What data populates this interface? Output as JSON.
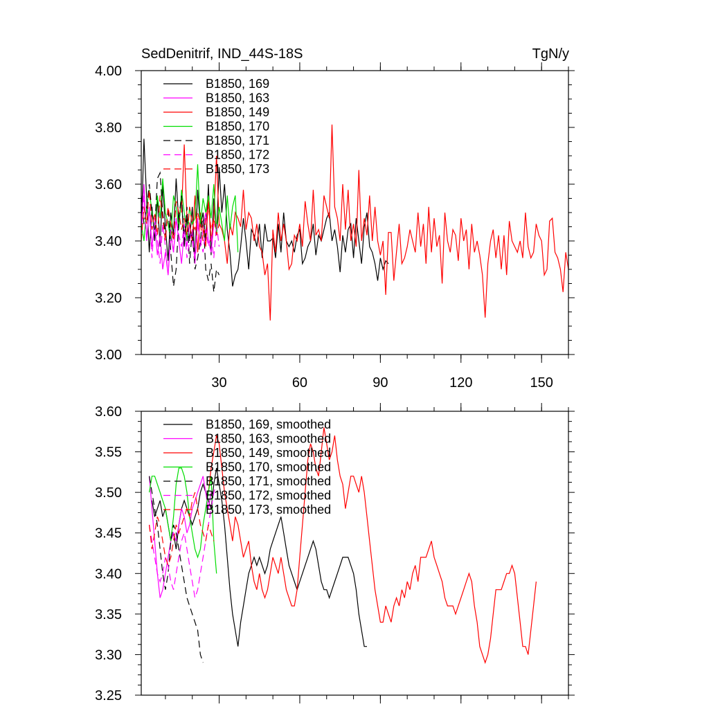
{
  "chart_data": [
    {
      "type": "line",
      "title": "SedDenitrif, IND_44S-18S",
      "units": "TgN/y",
      "xlim": [
        1,
        160
      ],
      "ylim": [
        3.0,
        4.0
      ],
      "yticks": [
        3.0,
        3.2,
        3.4,
        3.6,
        3.8,
        4.0
      ],
      "ytick_labels": [
        "3.00",
        "3.20",
        "3.40",
        "3.60",
        "3.80",
        "4.00"
      ],
      "xticks": [
        30,
        60,
        90,
        120,
        150
      ],
      "xtick_labels": [
        "30",
        "60",
        "90",
        "120",
        "150"
      ],
      "legend_position": "top-left",
      "series": [
        {
          "name": "B1850, 169",
          "color": "#000000",
          "dash": "solid",
          "x_start": 1,
          "values": [
            3.42,
            3.76,
            3.55,
            3.36,
            3.52,
            3.4,
            3.55,
            3.38,
            3.6,
            3.45,
            3.33,
            3.5,
            3.42,
            3.62,
            3.46,
            3.55,
            3.38,
            3.48,
            3.4,
            3.52,
            3.33,
            3.58,
            3.45,
            3.5,
            3.4,
            3.6,
            3.35,
            3.55,
            3.42,
            3.66,
            3.5,
            3.6,
            3.44,
            3.36,
            3.24,
            3.28,
            3.3,
            3.38,
            3.48,
            3.4,
            3.3,
            3.44,
            3.42,
            3.38,
            3.46,
            3.34,
            3.46,
            3.4,
            3.4,
            3.41,
            3.34,
            3.46,
            3.36,
            3.5,
            3.4,
            3.38,
            3.4,
            3.36,
            3.42,
            3.44,
            3.32,
            3.34,
            3.38,
            3.4,
            3.46,
            3.35,
            3.42,
            3.4,
            3.44,
            3.48,
            3.5,
            3.4,
            3.44,
            3.38,
            3.29,
            3.42,
            3.36,
            3.44,
            3.46,
            3.34,
            3.48,
            3.4,
            3.32,
            3.45,
            3.5,
            3.38,
            3.36,
            3.32,
            3.26,
            3.34,
            3.3,
            3.33,
            3.32
          ]
        },
        {
          "name": "B1850, 163",
          "color": "#ff00ff",
          "dash": "solid",
          "x_start": 1,
          "values": [
            3.44,
            3.6,
            3.4,
            3.52,
            3.38,
            3.46,
            3.35,
            3.42,
            3.3,
            3.36,
            3.28,
            3.42,
            3.36,
            3.48,
            3.4,
            3.32,
            3.44,
            3.38,
            3.46,
            3.4,
            3.34,
            3.48,
            3.38,
            3.44,
            3.5,
            3.4,
            3.36,
            3.46
          ]
        },
        {
          "name": "B1850, 149",
          "color": "#ff0000",
          "dash": "solid",
          "x_start": 16,
          "values": [
            3.5,
            3.74,
            3.48,
            3.46,
            3.4,
            3.56,
            3.36,
            3.5,
            3.44,
            3.38,
            3.55,
            3.4,
            3.48,
            3.7,
            3.46,
            3.44,
            3.4,
            3.32,
            3.46,
            3.42,
            3.5,
            3.48,
            3.45,
            3.58,
            3.44,
            3.5,
            3.48,
            3.4,
            3.46,
            3.38,
            3.36,
            3.28,
            3.32,
            3.12,
            3.44,
            3.36,
            3.5,
            3.4,
            3.46,
            3.4,
            3.3,
            3.32,
            3.42,
            3.4,
            3.46,
            3.38,
            3.54,
            3.46,
            3.4,
            3.58,
            3.42,
            3.44,
            3.4,
            3.56,
            3.52,
            3.48,
            3.81,
            3.52,
            3.48,
            3.4,
            3.6,
            3.44,
            3.58,
            3.4,
            3.46,
            3.38,
            3.65,
            3.4,
            3.48,
            3.42,
            3.56,
            3.4,
            3.52,
            3.4,
            3.35,
            3.4,
            3.21,
            3.43,
            3.43,
            3.26,
            3.36,
            3.46,
            3.32,
            3.34,
            3.38,
            3.44,
            3.4,
            3.36,
            3.5,
            3.38,
            3.46,
            3.32,
            3.52,
            3.36,
            3.48,
            3.38,
            3.42,
            3.25,
            3.5,
            3.4,
            3.36,
            3.44,
            3.42,
            3.33,
            3.48,
            3.4,
            3.44,
            3.3,
            3.46,
            3.36,
            3.4,
            3.35,
            3.28,
            3.13,
            3.32,
            3.4,
            3.44,
            3.34,
            3.42,
            3.3,
            3.42,
            3.28,
            3.47,
            3.4,
            3.38,
            3.36,
            3.4,
            3.34,
            3.5,
            3.38,
            3.34,
            3.36,
            3.46,
            3.42,
            3.4,
            3.28,
            3.3,
            3.47,
            3.48,
            3.36,
            3.34,
            3.3,
            3.22,
            3.36,
            3.3,
            3.26,
            3.42,
            3.36,
            3.24,
            3.42,
            3.44,
            3.4,
            3.46
          ]
        },
        {
          "name": "B1850, 170",
          "color": "#00dd00",
          "dash": "solid",
          "x_start": 1,
          "values": [
            3.46,
            3.4,
            3.52,
            3.58,
            3.5,
            3.44,
            3.56,
            3.48,
            3.62,
            3.5,
            3.46,
            3.4,
            3.56,
            3.52,
            3.44,
            3.58,
            3.5,
            3.4,
            3.52,
            3.46,
            3.48,
            3.67,
            3.46,
            3.55,
            3.5,
            3.56,
            3.48,
            3.6,
            3.42,
            3.52,
            3.46,
            3.4,
            3.56,
            3.44,
            3.52,
            3.56,
            3.36
          ]
        },
        {
          "name": "B1850, 171",
          "color": "#000000",
          "dash": "long",
          "x_start": 1,
          "values": [
            3.56,
            3.46,
            3.52,
            3.6,
            3.5,
            3.44,
            3.62,
            3.64,
            3.5,
            3.42,
            3.52,
            3.36,
            3.24,
            3.3,
            3.48,
            3.56,
            3.4,
            3.52,
            3.32,
            3.44,
            3.3,
            3.34,
            3.4,
            3.5,
            3.3,
            3.26,
            3.32,
            3.22,
            3.3,
            3.28
          ]
        },
        {
          "name": "B1850, 172",
          "color": "#ff00ff",
          "dash": "long",
          "x_start": 1,
          "values": [
            3.42,
            3.56,
            3.4,
            3.52,
            3.34,
            3.48,
            3.4,
            3.32,
            3.46,
            3.38,
            3.28,
            3.44,
            3.36,
            3.48,
            3.42,
            3.38,
            3.46,
            3.34,
            3.4,
            3.44,
            3.32,
            3.46,
            3.4,
            3.36,
            3.44,
            3.38,
            3.42,
            3.34,
            3.46,
            3.38
          ]
        },
        {
          "name": "B1850, 173",
          "color": "#ff0000",
          "dash": "long",
          "x_start": 1,
          "values": [
            3.4,
            3.52,
            3.46,
            3.58,
            3.44,
            3.5,
            3.42,
            3.56,
            3.48,
            3.4,
            3.52,
            3.46,
            3.4,
            3.54,
            3.5,
            3.44,
            3.48,
            3.42,
            3.52,
            3.46,
            3.44,
            3.5,
            3.46,
            3.4,
            3.48,
            3.52,
            3.44,
            3.48,
            3.42,
            3.46
          ]
        }
      ]
    },
    {
      "type": "line",
      "xlim": [
        1,
        160
      ],
      "ylim": [
        3.25,
        3.6
      ],
      "yticks": [
        3.25,
        3.3,
        3.35,
        3.4,
        3.45,
        3.5,
        3.55,
        3.6
      ],
      "ytick_labels": [
        "3.25",
        "3.30",
        "3.35",
        "3.40",
        "3.45",
        "3.50",
        "3.55",
        "3.60"
      ],
      "xticks": [
        30,
        60,
        90,
        120,
        150
      ],
      "legend_position": "top-left",
      "series": [
        {
          "name": "B1850, 169, smoothed",
          "color": "#000000",
          "dash": "solid",
          "x_start": 5,
          "values": [
            3.49,
            3.47,
            3.48,
            3.49,
            3.47,
            3.48,
            3.46,
            3.44,
            3.45,
            3.43,
            3.46,
            3.48,
            3.49,
            3.48,
            3.47,
            3.46,
            3.47,
            3.48,
            3.5,
            3.51,
            3.5,
            3.49,
            3.48,
            3.51,
            3.53,
            3.51,
            3.49,
            3.46,
            3.42,
            3.38,
            3.35,
            3.33,
            3.31,
            3.34,
            3.36,
            3.38,
            3.4,
            3.41,
            3.42,
            3.41,
            3.42,
            3.41,
            3.4,
            3.41,
            3.43,
            3.44,
            3.45,
            3.46,
            3.47,
            3.45,
            3.43,
            3.41,
            3.4,
            3.39,
            3.38,
            3.39,
            3.4,
            3.41,
            3.42,
            3.43,
            3.44,
            3.43,
            3.41,
            3.39,
            3.38,
            3.38,
            3.37,
            3.38,
            3.39,
            3.4,
            3.41,
            3.42,
            3.42,
            3.42,
            3.41,
            3.4,
            3.38,
            3.35,
            3.33,
            3.31,
            3.31
          ]
        },
        {
          "name": "B1850, 163, smoothed",
          "color": "#ff00ff",
          "dash": "solid",
          "x_start": 4,
          "values": [
            3.52,
            3.48,
            3.44,
            3.4,
            3.37,
            3.38,
            3.4,
            3.42,
            3.44,
            3.45,
            3.44,
            3.46,
            3.48,
            3.47,
            3.45,
            3.46,
            3.48,
            3.49,
            3.5,
            3.51,
            3.52,
            3.5,
            3.48,
            3.5
          ]
        },
        {
          "name": "B1850, 149, smoothed",
          "color": "#ff0000",
          "dash": "solid",
          "x_start": 26,
          "values": [
            3.5,
            3.53,
            3.55,
            3.57,
            3.56,
            3.53,
            3.5,
            3.48,
            3.46,
            3.44,
            3.47,
            3.46,
            3.44,
            3.42,
            3.43,
            3.44,
            3.41,
            3.39,
            3.38,
            3.4,
            3.38,
            3.37,
            3.38,
            3.4,
            3.42,
            3.41,
            3.4,
            3.42,
            3.4,
            3.38,
            3.37,
            3.36,
            3.36,
            3.38,
            3.42,
            3.46,
            3.5,
            3.54,
            3.56,
            3.55,
            3.53,
            3.52,
            3.55,
            3.58,
            3.56,
            3.54,
            3.55,
            3.57,
            3.54,
            3.52,
            3.51,
            3.48,
            3.5,
            3.52,
            3.52,
            3.51,
            3.5,
            3.52,
            3.5,
            3.47,
            3.44,
            3.41,
            3.38,
            3.36,
            3.34,
            3.34,
            3.36,
            3.35,
            3.34,
            3.36,
            3.37,
            3.36,
            3.38,
            3.37,
            3.39,
            3.38,
            3.4,
            3.41,
            3.39,
            3.42,
            3.42,
            3.42,
            3.43,
            3.44,
            3.42,
            3.41,
            3.4,
            3.39,
            3.37,
            3.36,
            3.36,
            3.36,
            3.35,
            3.36,
            3.37,
            3.38,
            3.39,
            3.4,
            3.39,
            3.36,
            3.34,
            3.31,
            3.3,
            3.29,
            3.3,
            3.32,
            3.35,
            3.38,
            3.38,
            3.38,
            3.39,
            3.4,
            3.4,
            3.41,
            3.4,
            3.37,
            3.34,
            3.31,
            3.31,
            3.3,
            3.33,
            3.36,
            3.39
          ]
        },
        {
          "name": "B1850, 170, smoothed",
          "color": "#00dd00",
          "dash": "solid",
          "x_start": 4,
          "values": [
            3.5,
            3.52,
            3.52,
            3.51,
            3.5,
            3.49,
            3.48,
            3.46,
            3.44,
            3.47,
            3.51,
            3.53,
            3.53,
            3.52,
            3.5,
            3.47,
            3.45,
            3.43,
            3.42,
            3.43,
            3.46,
            3.48,
            3.5,
            3.52,
            3.44,
            3.4
          ]
        },
        {
          "name": "B1850, 171, smoothed",
          "color": "#000000",
          "dash": "long",
          "x_start": 4,
          "values": [
            3.52,
            3.5,
            3.48,
            3.46,
            3.43,
            3.4,
            3.38,
            3.4,
            3.44,
            3.46,
            3.45,
            3.43,
            3.41,
            3.39,
            3.37,
            3.36,
            3.35,
            3.34,
            3.33,
            3.3,
            3.29
          ]
        },
        {
          "name": "B1850, 172, smoothed",
          "color": "#ff00ff",
          "dash": "long",
          "x_start": 4,
          "values": [
            3.46,
            3.44,
            3.42,
            3.4,
            3.39,
            3.4,
            3.42,
            3.41,
            3.39,
            3.38,
            3.4,
            3.42,
            3.44,
            3.45,
            3.43,
            3.41,
            3.39,
            3.37,
            3.38,
            3.4,
            3.42,
            3.44,
            3.46,
            3.48,
            3.5,
            3.51
          ]
        },
        {
          "name": "B1850, 173, smoothed",
          "color": "#ff0000",
          "dash": "long",
          "x_start": 4,
          "values": [
            3.46,
            3.43,
            3.45,
            3.47,
            3.46,
            3.44,
            3.42,
            3.41,
            3.42,
            3.44,
            3.46,
            3.45,
            3.46,
            3.47,
            3.48,
            3.47,
            3.49,
            3.5,
            3.48,
            3.46,
            3.45,
            3.44,
            3.46,
            3.45,
            3.44
          ]
        }
      ]
    }
  ]
}
